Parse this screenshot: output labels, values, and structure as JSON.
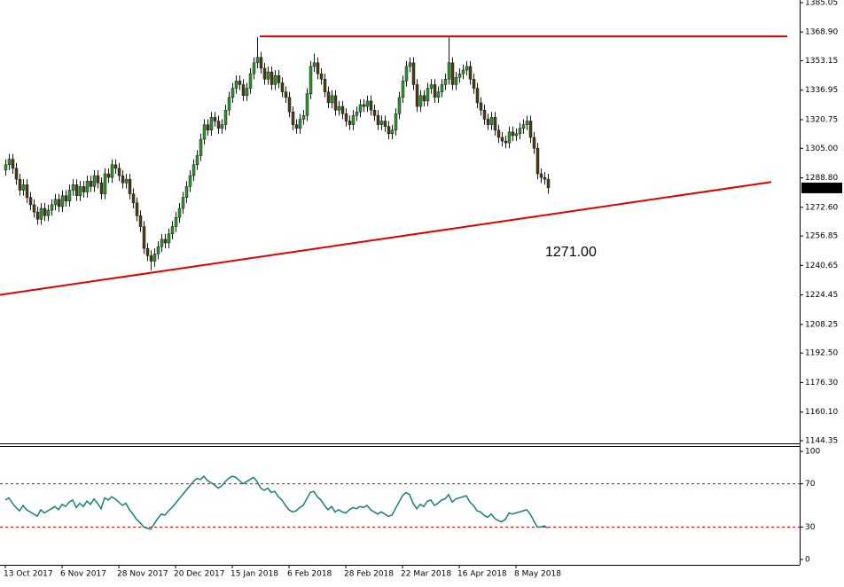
{
  "chart_data": [
    {
      "type": "candlestick",
      "categories": [
        "13 Oct 2017",
        null,
        null,
        null,
        null,
        null,
        null,
        null,
        null,
        null,
        null,
        null,
        null,
        null,
        null,
        null,
        "6 Nov 2017",
        null,
        null,
        null,
        null,
        null,
        null,
        null,
        null,
        null,
        null,
        null,
        null,
        null,
        null,
        null,
        "28 Nov 2017",
        null,
        null,
        null,
        null,
        null,
        null,
        null,
        null,
        null,
        null,
        null,
        null,
        null,
        null,
        null,
        "20 Dec 2017",
        null,
        null,
        null,
        null,
        null,
        null,
        null,
        null,
        null,
        null,
        null,
        null,
        null,
        null,
        null,
        "15 Jan 2018",
        null,
        null,
        null,
        null,
        null,
        null,
        null,
        null,
        null,
        null,
        null,
        null,
        null,
        null,
        null,
        "6 Feb 2018",
        null,
        null,
        null,
        null,
        null,
        null,
        null,
        null,
        null,
        null,
        null,
        null,
        null,
        null,
        null,
        "28 Feb 2018",
        null,
        null,
        null,
        null,
        null,
        null,
        null,
        null,
        null,
        null,
        null,
        null,
        null,
        null,
        null,
        "22 Mar 2018",
        null,
        null,
        null,
        null,
        null,
        null,
        null,
        null,
        null,
        null,
        null,
        null,
        null,
        null,
        null,
        "16 Apr 2018",
        null,
        null,
        null,
        null,
        null,
        null,
        null,
        null,
        null,
        null,
        null,
        null,
        null,
        null,
        null,
        "8 May 2018",
        null,
        null,
        null,
        null,
        null,
        null,
        null,
        null,
        null
      ],
      "candles": [
        [
          1293,
          1299,
          1290,
          1296
        ],
        [
          1296,
          1302,
          1293,
          1299
        ],
        [
          1299,
          1302,
          1291,
          1294
        ],
        [
          1294,
          1297,
          1285,
          1288
        ],
        [
          1288,
          1291,
          1279,
          1282
        ],
        [
          1282,
          1288,
          1279,
          1285
        ],
        [
          1285,
          1288,
          1275,
          1278
        ],
        [
          1278,
          1281,
          1271,
          1274
        ],
        [
          1274,
          1277,
          1267,
          1270
        ],
        [
          1270,
          1273,
          1263,
          1266
        ],
        [
          1266,
          1275,
          1263,
          1272
        ],
        [
          1272,
          1275,
          1265,
          1268
        ],
        [
          1268,
          1274,
          1265,
          1271
        ],
        [
          1271,
          1277,
          1268,
          1274
        ],
        [
          1274,
          1280,
          1271,
          1277
        ],
        [
          1277,
          1280,
          1270,
          1273
        ],
        [
          1273,
          1282,
          1270,
          1279
        ],
        [
          1279,
          1282,
          1273,
          1276
        ],
        [
          1276,
          1285,
          1273,
          1282
        ],
        [
          1282,
          1288,
          1279,
          1285
        ],
        [
          1285,
          1288,
          1276,
          1279
        ],
        [
          1279,
          1287,
          1276,
          1284
        ],
        [
          1284,
          1287,
          1278,
          1281
        ],
        [
          1281,
          1290,
          1278,
          1287
        ],
        [
          1287,
          1290,
          1281,
          1284
        ],
        [
          1284,
          1293,
          1281,
          1290
        ],
        [
          1290,
          1293,
          1283,
          1286
        ],
        [
          1286,
          1289,
          1277,
          1280
        ],
        [
          1280,
          1294,
          1277,
          1291
        ],
        [
          1291,
          1294,
          1286,
          1289
        ],
        [
          1289,
          1299,
          1286,
          1296
        ],
        [
          1296,
          1299,
          1291,
          1294
        ],
        [
          1294,
          1297,
          1287,
          1290
        ],
        [
          1290,
          1293,
          1283,
          1286
        ],
        [
          1286,
          1291,
          1283,
          1288
        ],
        [
          1288,
          1291,
          1277,
          1280
        ],
        [
          1280,
          1283,
          1272,
          1275
        ],
        [
          1275,
          1278,
          1265,
          1268
        ],
        [
          1268,
          1271,
          1259,
          1262
        ],
        [
          1262,
          1265,
          1247,
          1250
        ],
        [
          1250,
          1253,
          1243,
          1246
        ],
        [
          1246,
          1249,
          1238,
          1243
        ],
        [
          1243,
          1250,
          1240,
          1247
        ],
        [
          1247,
          1254,
          1244,
          1251
        ],
        [
          1251,
          1258,
          1248,
          1255
        ],
        [
          1255,
          1258,
          1250,
          1253
        ],
        [
          1253,
          1261,
          1250,
          1258
        ],
        [
          1258,
          1265,
          1255,
          1262
        ],
        [
          1262,
          1270,
          1259,
          1267
        ],
        [
          1267,
          1275,
          1264,
          1272
        ],
        [
          1272,
          1281,
          1269,
          1278
        ],
        [
          1278,
          1287,
          1275,
          1284
        ],
        [
          1284,
          1293,
          1281,
          1290
        ],
        [
          1290,
          1299,
          1287,
          1296
        ],
        [
          1296,
          1304,
          1293,
          1301
        ],
        [
          1301,
          1313,
          1298,
          1310
        ],
        [
          1310,
          1321,
          1307,
          1318
        ],
        [
          1318,
          1321,
          1312,
          1315
        ],
        [
          1315,
          1325,
          1312,
          1322
        ],
        [
          1322,
          1325,
          1317,
          1320
        ],
        [
          1320,
          1323,
          1313,
          1316
        ],
        [
          1316,
          1321,
          1313,
          1318
        ],
        [
          1318,
          1329,
          1315,
          1326
        ],
        [
          1326,
          1336,
          1323,
          1333
        ],
        [
          1333,
          1341,
          1330,
          1338
        ],
        [
          1338,
          1345,
          1335,
          1342
        ],
        [
          1342,
          1345,
          1337,
          1340
        ],
        [
          1340,
          1343,
          1331,
          1334
        ],
        [
          1334,
          1341,
          1331,
          1338
        ],
        [
          1338,
          1349,
          1335,
          1346
        ],
        [
          1346,
          1355,
          1343,
          1352
        ],
        [
          1352,
          1366,
          1349,
          1355
        ],
        [
          1355,
          1358,
          1346,
          1349
        ],
        [
          1349,
          1352,
          1340,
          1343
        ],
        [
          1343,
          1350,
          1340,
          1347
        ],
        [
          1347,
          1350,
          1337,
          1340
        ],
        [
          1340,
          1348,
          1337,
          1345
        ],
        [
          1345,
          1348,
          1338,
          1341
        ],
        [
          1341,
          1344,
          1333,
          1336
        ],
        [
          1336,
          1339,
          1330,
          1333
        ],
        [
          1333,
          1336,
          1322,
          1325
        ],
        [
          1325,
          1328,
          1315,
          1318
        ],
        [
          1318,
          1321,
          1313,
          1316
        ],
        [
          1316,
          1324,
          1313,
          1321
        ],
        [
          1321,
          1326,
          1318,
          1323
        ],
        [
          1323,
          1338,
          1320,
          1335
        ],
        [
          1335,
          1353,
          1332,
          1350
        ],
        [
          1350,
          1357,
          1347,
          1352
        ],
        [
          1352,
          1355,
          1343,
          1346
        ],
        [
          1346,
          1349,
          1340,
          1343
        ],
        [
          1343,
          1346,
          1333,
          1336
        ],
        [
          1336,
          1339,
          1327,
          1330
        ],
        [
          1330,
          1337,
          1327,
          1334
        ],
        [
          1334,
          1337,
          1323,
          1326
        ],
        [
          1326,
          1331,
          1323,
          1328
        ],
        [
          1328,
          1331,
          1321,
          1324
        ],
        [
          1324,
          1327,
          1317,
          1320
        ],
        [
          1320,
          1323,
          1315,
          1318
        ],
        [
          1318,
          1326,
          1315,
          1323
        ],
        [
          1323,
          1328,
          1320,
          1325
        ],
        [
          1325,
          1332,
          1322,
          1329
        ],
        [
          1329,
          1332,
          1325,
          1328
        ],
        [
          1328,
          1334,
          1325,
          1331
        ],
        [
          1331,
          1334,
          1323,
          1326
        ],
        [
          1326,
          1329,
          1320,
          1323
        ],
        [
          1323,
          1326,
          1315,
          1318
        ],
        [
          1318,
          1323,
          1315,
          1320
        ],
        [
          1320,
          1323,
          1314,
          1317
        ],
        [
          1317,
          1320,
          1310,
          1313
        ],
        [
          1313,
          1318,
          1310,
          1315
        ],
        [
          1315,
          1327,
          1312,
          1324
        ],
        [
          1324,
          1336,
          1321,
          1333
        ],
        [
          1333,
          1345,
          1330,
          1342
        ],
        [
          1342,
          1353,
          1339,
          1350
        ],
        [
          1350,
          1355,
          1347,
          1352
        ],
        [
          1352,
          1355,
          1337,
          1340
        ],
        [
          1340,
          1343,
          1325,
          1328
        ],
        [
          1328,
          1337,
          1325,
          1334
        ],
        [
          1334,
          1337,
          1328,
          1331
        ],
        [
          1331,
          1341,
          1328,
          1338
        ],
        [
          1338,
          1343,
          1335,
          1340
        ],
        [
          1340,
          1343,
          1330,
          1333
        ],
        [
          1333,
          1339,
          1330,
          1336
        ],
        [
          1336,
          1343,
          1333,
          1340
        ],
        [
          1340,
          1346,
          1337,
          1343
        ],
        [
          1343,
          1366,
          1340,
          1352
        ],
        [
          1352,
          1355,
          1337,
          1340
        ],
        [
          1340,
          1347,
          1337,
          1344
        ],
        [
          1344,
          1349,
          1341,
          1346
        ],
        [
          1346,
          1351,
          1343,
          1348
        ],
        [
          1348,
          1353,
          1345,
          1350
        ],
        [
          1350,
          1353,
          1340,
          1343
        ],
        [
          1343,
          1346,
          1335,
          1338
        ],
        [
          1338,
          1341,
          1327,
          1330
        ],
        [
          1330,
          1333,
          1323,
          1326
        ],
        [
          1326,
          1329,
          1318,
          1321
        ],
        [
          1321,
          1324,
          1315,
          1318
        ],
        [
          1318,
          1325,
          1315,
          1322
        ],
        [
          1322,
          1325,
          1312,
          1315
        ],
        [
          1315,
          1318,
          1308,
          1311
        ],
        [
          1311,
          1314,
          1306,
          1309
        ],
        [
          1309,
          1312,
          1305,
          1308
        ],
        [
          1308,
          1317,
          1305,
          1314
        ],
        [
          1314,
          1317,
          1309,
          1312
        ],
        [
          1312,
          1316,
          1309,
          1313
        ],
        [
          1313,
          1319,
          1310,
          1316
        ],
        [
          1316,
          1321,
          1313,
          1318
        ],
        [
          1318,
          1323,
          1315,
          1320
        ],
        [
          1320,
          1323,
          1308,
          1311
        ],
        [
          1311,
          1314,
          1302,
          1305
        ],
        [
          1305,
          1308,
          1288,
          1291
        ],
        [
          1291,
          1294,
          1286,
          1289
        ],
        [
          1289,
          1292,
          1285,
          1288
        ],
        [
          1288,
          1291,
          1280,
          1283.25
        ]
      ],
      "up_color": "#1f9e1f",
      "down_color": "#4a3f0a",
      "wick_color": "#1a1a1a",
      "ylim": [
        1142.9,
        1386.5
      ],
      "yticks": [
        1385.05,
        {
          "value": 1368.9,
          "label": "1368.90"
        },
        1353.15,
        1336.95,
        1320.75,
        {
          "value": 1305,
          "label": "1305.00"
        },
        {
          "value": 1288.8,
          "label": "1288.80"
        },
        {
          "value": 1272.6,
          "label": "1272.60"
        },
        1256.85,
        1240.65,
        1224.45,
        1208.25,
        {
          "value": 1192.5,
          "label": "1192.50"
        },
        {
          "value": 1176.3,
          "label": "1176.30"
        },
        {
          "value": 1160.1,
          "label": "1160.10"
        },
        1144.35
      ],
      "last_price": 1283.25,
      "resistance_line": 1366.5,
      "support_line": [
        1224.5,
        1286.5
      ],
      "line_color": "#e00000",
      "annotation": "1271.00"
    },
    {
      "type": "line",
      "values": [
        55,
        57,
        52,
        48,
        45,
        50,
        46,
        44,
        42,
        40,
        46,
        43,
        45,
        47,
        49,
        46,
        51,
        49,
        53,
        55,
        48,
        52,
        49,
        54,
        51,
        56,
        52,
        47,
        57,
        55,
        58,
        56,
        53,
        50,
        52,
        46,
        42,
        37,
        34,
        30,
        29,
        28,
        33,
        38,
        42,
        41,
        45,
        48,
        52,
        56,
        60,
        64,
        68,
        72,
        75,
        74,
        77,
        73,
        71,
        69,
        66,
        68,
        72,
        75,
        77,
        76,
        73,
        70,
        72,
        74,
        76,
        72,
        66,
        64,
        66,
        62,
        63,
        58,
        55,
        50,
        46,
        44,
        45,
        48,
        50,
        56,
        62,
        63,
        58,
        55,
        50,
        46,
        49,
        44,
        46,
        44,
        43,
        46,
        48,
        47,
        49,
        48,
        50,
        46,
        44,
        42,
        44,
        42,
        40,
        41,
        47,
        53,
        59,
        62,
        60,
        52,
        47,
        51,
        49,
        54,
        55,
        50,
        52,
        55,
        56,
        60,
        53,
        56,
        57,
        58,
        59,
        53,
        50,
        45,
        44,
        41,
        39,
        42,
        38,
        36,
        35,
        37,
        43,
        42,
        43,
        44,
        45,
        46,
        42,
        36,
        30,
        30,
        31,
        29
      ],
      "color": "#17807a",
      "ylim": [
        -5,
        105
      ],
      "yticks": [
        100,
        70,
        30,
        0
      ],
      "levels": [
        70,
        30
      ],
      "level_color": "#d00000"
    }
  ]
}
